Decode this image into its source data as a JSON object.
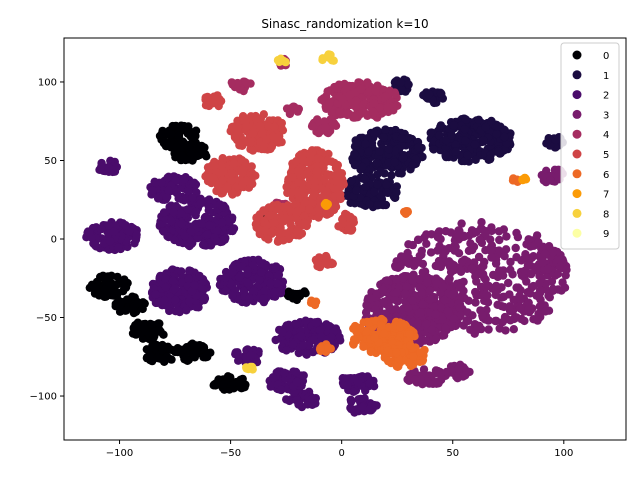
{
  "chart_data": {
    "type": "scatter",
    "title": "Sinasc_randomization k=10",
    "xlabel": "",
    "ylabel": "",
    "xlim": [
      -125,
      128
    ],
    "ylim": [
      -128,
      128
    ],
    "x_ticks": [
      -100,
      -50,
      0,
      50,
      100
    ],
    "y_ticks": [
      -100,
      -50,
      0,
      50,
      100
    ],
    "grid": false,
    "legend_position": "top-right",
    "series": [
      {
        "name": "0",
        "color": "#000004",
        "clusters": [
          [
            -73,
            65,
            9,
            8
          ],
          [
            -68,
            55,
            8,
            6
          ],
          [
            -105,
            -30,
            9,
            7
          ],
          [
            -95,
            -42,
            7,
            6
          ],
          [
            -87,
            -58,
            8,
            6
          ],
          [
            -82,
            -73,
            7,
            6
          ],
          [
            -67,
            -72,
            8,
            6
          ],
          [
            -50,
            -92,
            8,
            5
          ],
          [
            -35,
            10,
            4,
            4
          ],
          [
            -20,
            -35,
            5,
            4
          ]
        ]
      },
      {
        "name": "1",
        "color": "#1b0c41",
        "clusters": [
          [
            20,
            55,
            17,
            15
          ],
          [
            13,
            30,
            13,
            10
          ],
          [
            58,
            63,
            19,
            14
          ],
          [
            27,
            98,
            4,
            5
          ],
          [
            41,
            90,
            5,
            5
          ],
          [
            96,
            62,
            4,
            4
          ]
        ]
      },
      {
        "name": "2",
        "color": "#4a0c6b",
        "clusters": [
          [
            -103,
            2,
            12,
            9
          ],
          [
            -65,
            10,
            17,
            16
          ],
          [
            -75,
            32,
            12,
            8
          ],
          [
            -73,
            -33,
            13,
            14
          ],
          [
            -40,
            -27,
            15,
            14
          ],
          [
            -15,
            -63,
            15,
            11
          ],
          [
            -25,
            -90,
            9,
            7
          ],
          [
            -105,
            46,
            5,
            4
          ],
          [
            -17,
            -102,
            8,
            5
          ],
          [
            8,
            -106,
            8,
            5
          ],
          [
            7,
            -92,
            8,
            6
          ],
          [
            -42,
            -75,
            7,
            5
          ]
        ]
      },
      {
        "name": "3",
        "color": "#781c6d",
        "clusters": [
          [
            62,
            -25,
            40,
            36
          ],
          [
            32,
            -45,
            22,
            22
          ],
          [
            95,
            -15,
            5,
            8
          ],
          [
            38,
            -88,
            9,
            5
          ],
          [
            95,
            40,
            5,
            5
          ],
          [
            53,
            -85,
            6,
            5
          ]
        ]
      },
      {
        "name": "4",
        "color": "#a52c60",
        "clusters": [
          [
            8,
            88,
            18,
            12
          ],
          [
            -8,
            72,
            6,
            5
          ],
          [
            -22,
            82,
            4,
            3
          ],
          [
            -45,
            98,
            5,
            4
          ],
          [
            -25,
            112,
            3,
            3
          ],
          [
            -28,
            22,
            3,
            3
          ]
        ]
      },
      {
        "name": "5",
        "color": "#cf4446",
        "clusters": [
          [
            -38,
            68,
            13,
            12
          ],
          [
            -50,
            40,
            12,
            12
          ],
          [
            -12,
            35,
            13,
            22
          ],
          [
            -27,
            10,
            12,
            12
          ],
          [
            -58,
            88,
            5,
            4
          ],
          [
            2,
            10,
            4,
            6
          ],
          [
            -8,
            -15,
            4,
            5
          ]
        ]
      },
      {
        "name": "6",
        "color": "#ed6925",
        "clusters": [
          [
            18,
            -62,
            15,
            11
          ],
          [
            28,
            -73,
            10,
            9
          ],
          [
            -7,
            -70,
            3,
            3
          ],
          [
            -12,
            -40,
            2,
            2
          ],
          [
            78,
            38,
            2,
            2
          ],
          [
            29,
            17,
            1,
            1
          ]
        ]
      },
      {
        "name": "7",
        "color": "#fb9b06",
        "clusters": [
          [
            82,
            38,
            1,
            1
          ],
          [
            -7,
            22,
            1,
            1
          ]
        ]
      },
      {
        "name": "8",
        "color": "#f7d13d",
        "clusters": [
          [
            -6,
            115,
            3,
            3
          ],
          [
            -40,
            -82,
            3,
            2
          ],
          [
            -27,
            113,
            2,
            2
          ]
        ]
      },
      {
        "name": "9",
        "color": "#fcffa4",
        "clusters": []
      }
    ]
  }
}
